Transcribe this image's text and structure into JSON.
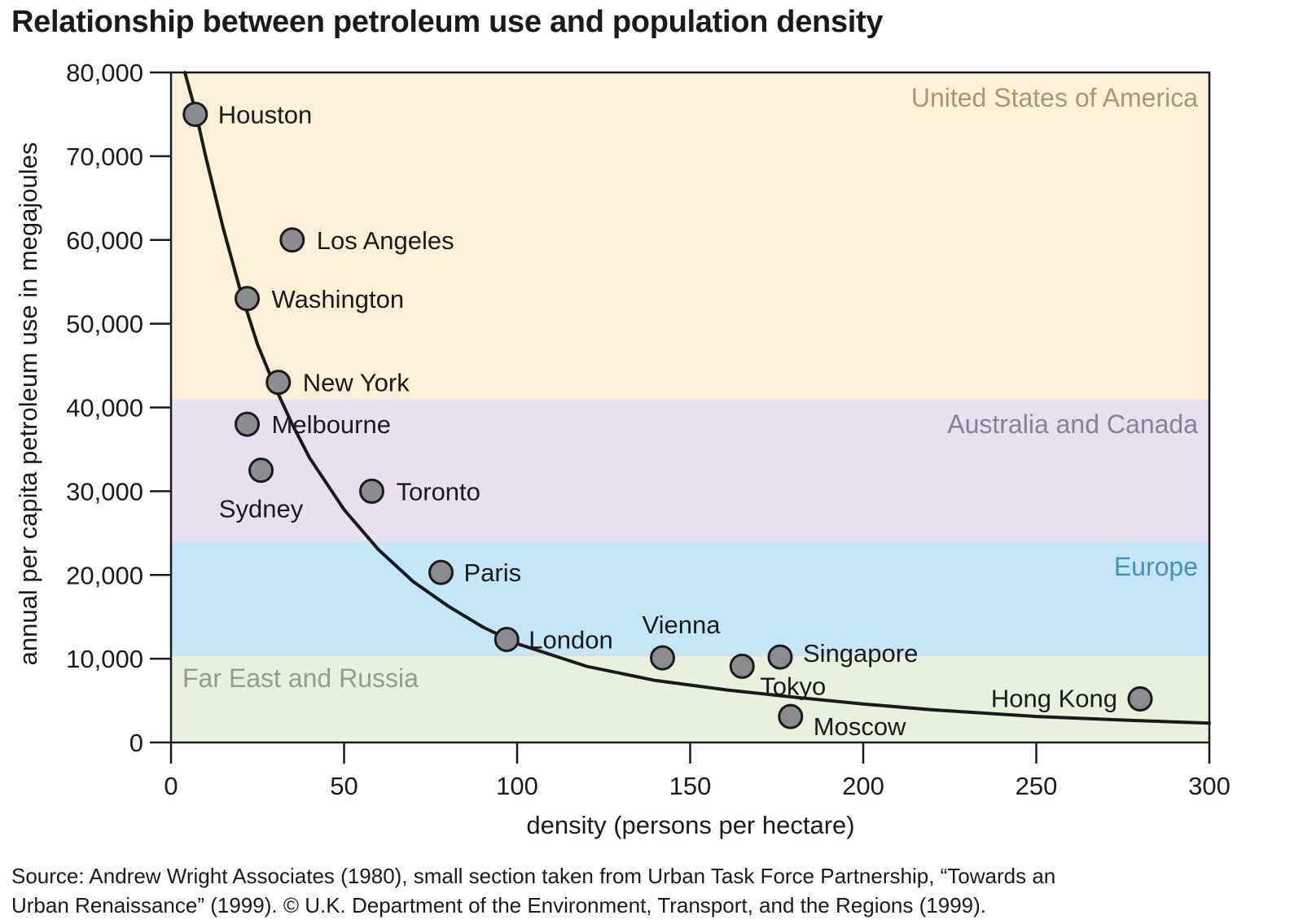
{
  "chart_data": {
    "type": "scatter",
    "title": "Relationship between petroleum use and population density",
    "xlabel": "density (persons per hectare)",
    "ylabel": "annual per capita petroleum use in megajoules",
    "xlim": [
      0,
      300
    ],
    "ylim": [
      0,
      80000
    ],
    "xticks": [
      0,
      50,
      100,
      150,
      200,
      250,
      300
    ],
    "xtick_labels": [
      "0",
      "50",
      "100",
      "150",
      "200",
      "250",
      "300"
    ],
    "yticks": [
      0,
      10000,
      20000,
      30000,
      40000,
      50000,
      60000,
      70000,
      80000
    ],
    "ytick_labels": [
      "0",
      "10,000",
      "20,000",
      "30,000",
      "40,000",
      "50,000",
      "60,000",
      "70,000",
      "80,000"
    ],
    "grid": false,
    "bands": [
      {
        "label": "United States of America",
        "y_min": 41000,
        "y_max": 80000,
        "color": "#fdf0d8",
        "label_color": "#a89770",
        "label_position": "top-right"
      },
      {
        "label": "Australia and Canada",
        "y_min": 24000,
        "y_max": 41000,
        "color": "#e9e0ef",
        "label_color": "#8b7f96",
        "label_position": "top-right"
      },
      {
        "label": "Europe",
        "y_min": 10300,
        "y_max": 24000,
        "color": "#c5e6f7",
        "label_color": "#4a93b0",
        "label_position": "top-right"
      },
      {
        "label": "Far East and Russia",
        "y_min": 0,
        "y_max": 10300,
        "color": "#e7f2de",
        "label_color": "#8fa288",
        "label_position": "top-left"
      }
    ],
    "points": [
      {
        "label": "Houston",
        "x": 7,
        "y": 75000
      },
      {
        "label": "Los Angeles",
        "x": 35,
        "y": 60000
      },
      {
        "label": "Washington",
        "x": 22,
        "y": 53000
      },
      {
        "label": "New York",
        "x": 31,
        "y": 43000
      },
      {
        "label": "Melbourne",
        "x": 22,
        "y": 38000
      },
      {
        "label": "Sydney",
        "x": 26,
        "y": 32500
      },
      {
        "label": "Toronto",
        "x": 58,
        "y": 30000
      },
      {
        "label": "Paris",
        "x": 78,
        "y": 20300
      },
      {
        "label": "London",
        "x": 97,
        "y": 12300
      },
      {
        "label": "Vienna",
        "x": 142,
        "y": 10100
      },
      {
        "label": "Tokyo",
        "x": 165,
        "y": 9100
      },
      {
        "label": "Singapore",
        "x": 176,
        "y": 10200
      },
      {
        "label": "Moscow",
        "x": 179,
        "y": 3100
      },
      {
        "label": "Hong Kong",
        "x": 280,
        "y": 5200
      }
    ],
    "trend_curve": [
      [
        4,
        80000
      ],
      [
        7,
        75500
      ],
      [
        10,
        70000
      ],
      [
        15,
        61500
      ],
      [
        20,
        54000
      ],
      [
        25,
        47500
      ],
      [
        30,
        42500
      ],
      [
        35,
        38000
      ],
      [
        40,
        34000
      ],
      [
        50,
        27800
      ],
      [
        60,
        23000
      ],
      [
        70,
        19200
      ],
      [
        80,
        16300
      ],
      [
        90,
        13800
      ],
      [
        100,
        11800
      ],
      [
        120,
        9100
      ],
      [
        140,
        7400
      ],
      [
        160,
        6300
      ],
      [
        180,
        5400
      ],
      [
        200,
        4600
      ],
      [
        220,
        3900
      ],
      [
        250,
        3100
      ],
      [
        280,
        2600
      ],
      [
        300,
        2300
      ]
    ],
    "point_color": "#8a8c8f",
    "line_color": "#1a1a1a"
  },
  "source_note": {
    "line1": "Source: Andrew Wright Associates (1980), small section taken from Urban Task Force Partnership, “Towards an",
    "line2": "Urban Renaissance” (1999). © U.K. Department of the Environment, Transport, and the Regions (1999)."
  }
}
